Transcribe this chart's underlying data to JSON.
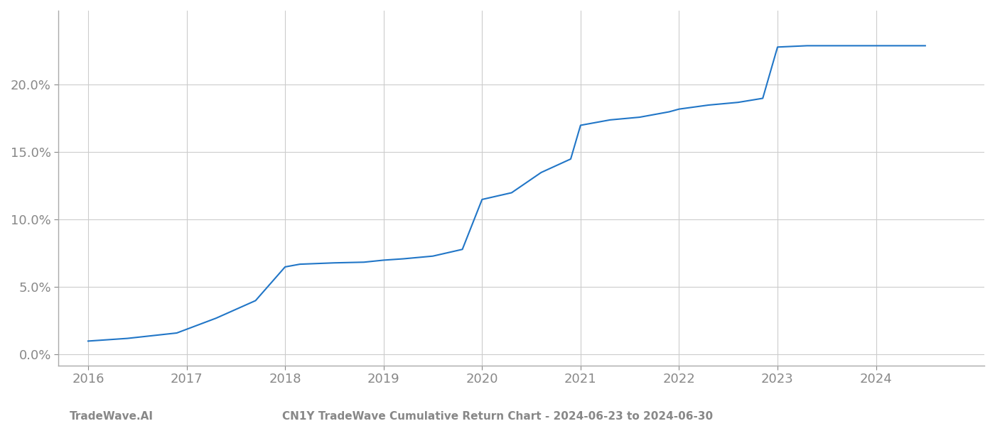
{
  "x_values": [
    2016.0,
    2016.4,
    2016.9,
    2017.3,
    2017.7,
    2018.0,
    2018.15,
    2018.5,
    2018.8,
    2019.0,
    2019.2,
    2019.5,
    2019.8,
    2020.0,
    2020.3,
    2020.6,
    2020.9,
    2021.0,
    2021.15,
    2021.3,
    2021.6,
    2021.9,
    2022.0,
    2022.3,
    2022.6,
    2022.85,
    2023.0,
    2023.3,
    2023.6,
    2023.9,
    2024.0,
    2024.5
  ],
  "y_values": [
    1.0,
    1.2,
    1.6,
    2.7,
    4.0,
    6.5,
    6.7,
    6.8,
    6.85,
    7.0,
    7.1,
    7.3,
    7.8,
    11.5,
    12.0,
    13.5,
    14.5,
    17.0,
    17.2,
    17.4,
    17.6,
    18.0,
    18.2,
    18.5,
    18.7,
    19.0,
    22.8,
    22.9,
    22.9,
    22.9,
    22.9,
    22.9
  ],
  "line_color": "#2176c7",
  "line_width": 1.5,
  "grid_color": "#cccccc",
  "background_color": "#ffffff",
  "title": "CN1Y TradeWave Cumulative Return Chart - 2024-06-23 to 2024-06-30",
  "watermark": "TradeWave.AI",
  "tick_color": "#888888",
  "xlim": [
    2015.7,
    2025.1
  ],
  "ylim": [
    -0.8,
    25.5
  ],
  "yticks": [
    0.0,
    5.0,
    10.0,
    15.0,
    20.0
  ],
  "xticks": [
    2016,
    2017,
    2018,
    2019,
    2020,
    2021,
    2022,
    2023,
    2024
  ],
  "title_fontsize": 11,
  "tick_fontsize": 13,
  "watermark_fontsize": 11
}
